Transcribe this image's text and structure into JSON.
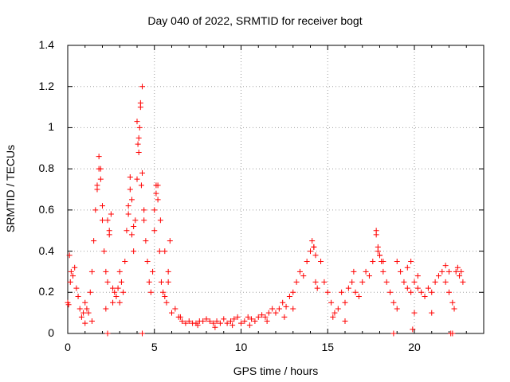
{
  "chart_data": {
    "type": "scatter",
    "title": "Day 040 of 2022, SRMTID for receiver bogt",
    "xlabel": "GPS time / hours",
    "ylabel": "SRMTID / TECUs",
    "xlim": [
      0,
      24
    ],
    "ylim": [
      0,
      1.4
    ],
    "xticks": [
      0,
      5,
      10,
      15,
      20
    ],
    "xtick_labels": [
      "0",
      "5",
      "10",
      "15",
      "20"
    ],
    "yticks": [
      0,
      0.2,
      0.4,
      0.6,
      0.8,
      1.0,
      1.2,
      1.4
    ],
    "ytick_labels": [
      "0",
      "0.2",
      "0.4",
      "0.6",
      "0.8",
      "1",
      "1.2",
      "1.4"
    ],
    "grid": true,
    "marker": "plus",
    "series": [
      {
        "name": "SRMTID",
        "color": "#ff0000",
        "x": [
          0.0,
          0.1,
          0.2,
          0.3,
          0.4,
          0.5,
          0.6,
          0.7,
          0.8,
          0.9,
          1.0,
          1.1,
          1.2,
          1.3,
          1.4,
          1.5,
          1.6,
          1.7,
          1.8,
          1.9,
          2.0,
          2.1,
          2.2,
          2.3,
          2.4,
          2.5,
          2.6,
          2.7,
          2.8,
          2.9,
          3.0,
          3.1,
          3.2,
          3.3,
          3.4,
          3.5,
          3.6,
          3.7,
          3.8,
          3.9,
          4.0,
          4.1,
          4.2,
          4.3,
          4.4,
          4.5,
          4.6,
          4.7,
          4.8,
          4.9,
          5.0,
          5.1,
          5.2,
          5.3,
          5.4,
          5.5,
          5.6,
          5.7,
          5.8,
          5.9,
          6.0,
          6.2,
          6.4,
          6.6,
          6.8,
          7.0,
          7.2,
          7.4,
          7.6,
          7.8,
          8.0,
          8.2,
          8.4,
          8.6,
          8.8,
          9.0,
          9.2,
          9.4,
          9.6,
          9.8,
          10.0,
          10.2,
          10.4,
          10.6,
          10.8,
          11.0,
          11.2,
          11.4,
          11.6,
          11.8,
          12.0,
          12.2,
          12.4,
          12.6,
          12.8,
          13.0,
          13.2,
          13.4,
          13.6,
          13.8,
          14.0,
          14.1,
          14.2,
          14.3,
          14.4,
          14.6,
          14.8,
          15.0,
          15.2,
          15.4,
          15.6,
          15.8,
          16.0,
          16.2,
          16.4,
          16.6,
          16.8,
          17.0,
          17.2,
          17.4,
          17.6,
          17.8,
          17.9,
          18.0,
          18.1,
          18.2,
          18.4,
          18.6,
          18.8,
          19.0,
          19.2,
          19.4,
          19.6,
          19.8,
          20.0,
          20.2,
          20.4,
          20.6,
          20.8,
          21.0,
          21.2,
          21.4,
          21.6,
          21.8,
          22.0,
          22.2,
          22.4,
          22.6,
          22.8,
          1.8,
          1.9,
          2.0,
          1.7,
          2.3,
          2.4,
          3.5,
          3.6,
          3.7,
          3.8,
          4.0,
          4.1,
          4.2,
          4.3,
          4.4,
          4.05,
          4.15,
          4.25,
          5.0,
          5.1,
          5.2,
          5.35,
          5.6,
          5.8,
          14.2,
          14.3,
          16.5,
          17.8,
          17.9,
          18.0,
          18.2,
          19.6,
          19.8,
          20.2,
          21.8,
          22.0,
          22.5,
          22.7,
          0.05,
          0.15,
          1.0,
          1.4,
          2.2,
          2.6,
          3.0,
          6.5,
          7.5,
          8.5,
          9.5,
          10.5,
          11.5,
          12.5,
          13.0,
          15.3,
          16.0,
          19.0,
          20.0,
          21.0,
          22.3,
          2.3,
          4.3,
          18.8,
          22.1,
          22.2,
          19.9
        ],
        "values": [
          0.15,
          0.38,
          0.3,
          0.28,
          0.32,
          0.22,
          0.18,
          0.12,
          0.08,
          0.1,
          0.15,
          0.12,
          0.1,
          0.2,
          0.3,
          0.45,
          0.6,
          0.72,
          0.86,
          0.8,
          0.55,
          0.4,
          0.3,
          0.25,
          0.5,
          0.58,
          0.22,
          0.2,
          0.18,
          0.22,
          0.3,
          0.25,
          0.2,
          0.35,
          0.5,
          0.62,
          0.7,
          0.48,
          0.4,
          0.55,
          0.75,
          0.95,
          1.1,
          1.2,
          0.6,
          0.45,
          0.35,
          0.25,
          0.2,
          0.3,
          0.5,
          0.72,
          0.65,
          0.4,
          0.25,
          0.2,
          0.18,
          0.15,
          0.25,
          0.45,
          0.1,
          0.12,
          0.08,
          0.06,
          0.05,
          0.06,
          0.05,
          0.05,
          0.06,
          0.06,
          0.07,
          0.06,
          0.05,
          0.06,
          0.05,
          0.07,
          0.05,
          0.06,
          0.07,
          0.08,
          0.05,
          0.06,
          0.08,
          0.07,
          0.06,
          0.08,
          0.09,
          0.08,
          0.1,
          0.12,
          0.1,
          0.12,
          0.15,
          0.13,
          0.18,
          0.2,
          0.25,
          0.3,
          0.28,
          0.35,
          0.4,
          0.45,
          0.42,
          0.25,
          0.22,
          0.35,
          0.25,
          0.2,
          0.15,
          0.1,
          0.12,
          0.2,
          0.15,
          0.22,
          0.25,
          0.2,
          0.18,
          0.25,
          0.3,
          0.28,
          0.35,
          0.48,
          0.4,
          0.38,
          0.35,
          0.3,
          0.25,
          0.2,
          0.15,
          0.35,
          0.3,
          0.25,
          0.22,
          0.2,
          0.25,
          0.22,
          0.2,
          0.18,
          0.22,
          0.2,
          0.25,
          0.28,
          0.3,
          0.25,
          0.2,
          0.15,
          0.3,
          0.28,
          0.25,
          0.8,
          0.75,
          0.62,
          0.7,
          0.55,
          0.48,
          0.58,
          0.76,
          0.65,
          0.52,
          1.03,
          0.88,
          1.12,
          0.78,
          0.55,
          0.92,
          1.0,
          0.72,
          0.6,
          0.68,
          0.72,
          0.55,
          0.4,
          0.3,
          0.42,
          0.38,
          0.3,
          0.5,
          0.42,
          0.38,
          0.35,
          0.32,
          0.35,
          0.28,
          0.33,
          0.3,
          0.32,
          0.3,
          0.14,
          0.25,
          0.05,
          0.06,
          0.12,
          0.15,
          0.15,
          0.08,
          0.04,
          0.03,
          0.04,
          0.04,
          0.06,
          0.08,
          0.12,
          0.08,
          0.06,
          0.12,
          0.1,
          0.1,
          0.12,
          0.0,
          0.0,
          0.0,
          0.0,
          0.0,
          0.02
        ]
      }
    ]
  }
}
